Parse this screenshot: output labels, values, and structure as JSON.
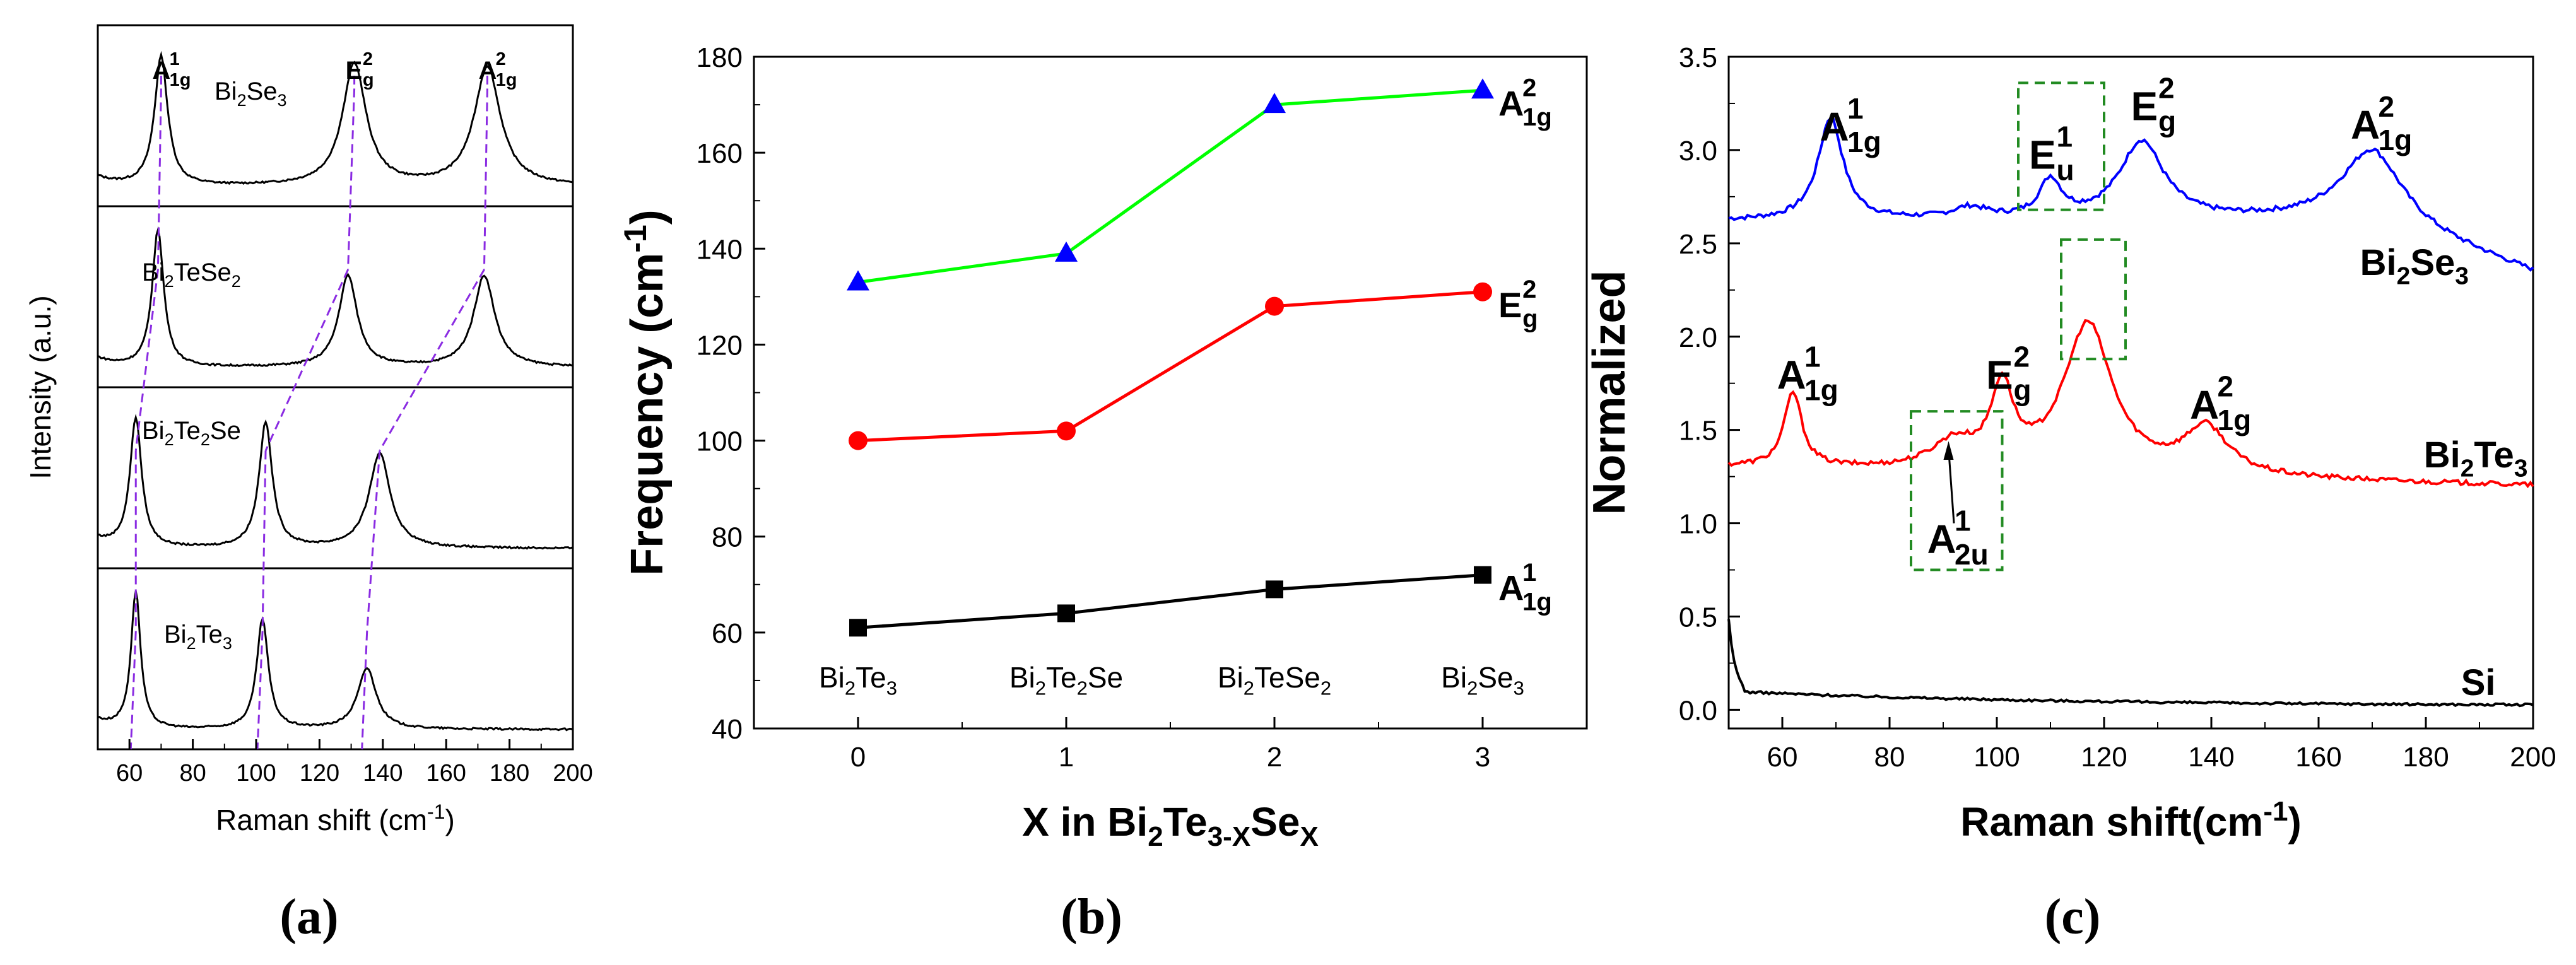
{
  "panels": {
    "a": {
      "label": "(a)",
      "ylabel": "Intensity (a.u.)",
      "xlabel": "Raman shift (cm",
      "xlabel_sup": "-1",
      "xlabel_end": ")",
      "xlim": [
        50,
        200
      ],
      "xticks": [
        "60",
        "80",
        "100",
        "120",
        "140",
        "160",
        "180",
        "200"
      ],
      "subplots": [
        {
          "name": "Bi2Se3",
          "base": "Bi",
          "sub1": "2",
          "mid": "Se",
          "sub2": "3",
          "tail": ""
        },
        {
          "name": "Bi2TeSe2",
          "base": "Bi",
          "sub1": "2",
          "mid": "TeSe",
          "sub2": "2",
          "tail": ""
        },
        {
          "name": "Bi2Te2Se",
          "base": "Bi",
          "sub1": "2",
          "mid": "Te",
          "sub2": "2",
          "tail": "Se"
        },
        {
          "name": "Bi2Te3",
          "base": "Bi",
          "sub1": "2",
          "mid": "Te",
          "sub2": "3",
          "tail": ""
        }
      ],
      "mode_labels": [
        {
          "main": "A",
          "sup": "1",
          "sub": "1g",
          "x": 70
        },
        {
          "main": "E",
          "sup": "2",
          "sub": "g",
          "x": 131
        },
        {
          "main": "A",
          "sup": "2",
          "sub": "1g",
          "x": 173
        }
      ],
      "peak_positions": [
        [
          70,
          131,
          173
        ],
        [
          69,
          129,
          172
        ],
        [
          62,
          103,
          139
        ],
        [
          62,
          102,
          135
        ]
      ]
    },
    "b": {
      "label": "(b)",
      "ylabel": "Frequency (cm",
      "ylabel_sup": "-1",
      "ylabel_end": ")",
      "xlabel_parts": [
        "X in Bi",
        "2",
        "Te",
        "3-X",
        "Se",
        "X"
      ],
      "ylim": [
        40,
        180
      ],
      "xlim": [
        -0.5,
        3.5
      ],
      "yticks": [
        "40",
        "60",
        "80",
        "100",
        "120",
        "140",
        "160",
        "180"
      ],
      "xticks": [
        "0",
        "1",
        "2",
        "3"
      ],
      "compound_labels": [
        {
          "base": "Bi",
          "sub1": "2",
          "mid": "Te",
          "sub2": "3",
          "tail": "",
          "sub3": ""
        },
        {
          "base": "Bi",
          "sub1": "2",
          "mid": "Te",
          "sub2": "2",
          "tail": "Se",
          "sub3": ""
        },
        {
          "base": "Bi",
          "sub1": "2",
          "mid": "TeSe",
          "sub2": "2",
          "tail": "",
          "sub3": ""
        },
        {
          "base": "Bi",
          "sub1": "2",
          "mid": "Se",
          "sub2": "3",
          "tail": "",
          "sub3": ""
        }
      ]
    },
    "c": {
      "label": "(c)",
      "ylabel": "Normalized",
      "xlabel": "Raman shift(cm",
      "xlabel_sup": "-1",
      "xlabel_end": ")",
      "xlim": [
        50,
        200
      ],
      "ylim": [
        -0.1,
        3.5
      ],
      "xticks": [
        "60",
        "80",
        "100",
        "120",
        "140",
        "160",
        "180",
        "200"
      ],
      "yticks": [
        "0.0",
        "0.5",
        "1.0",
        "1.5",
        "2.0",
        "2.5",
        "3.0",
        "3.5"
      ],
      "series_labels": [
        {
          "base": "Bi",
          "sub1": "2",
          "mid": "Se",
          "sub2": "3"
        },
        {
          "base": "Bi",
          "sub1": "2",
          "mid": "Te",
          "sub2": "3"
        },
        {
          "base": "Si",
          "sub1": "",
          "mid": "",
          "sub2": ""
        }
      ],
      "mode_labels_bi2se3": [
        {
          "main": "A",
          "sup": "1",
          "sub": "1g"
        },
        {
          "main": "E",
          "sup": "1",
          "sub": "u"
        },
        {
          "main": "E",
          "sup": "2",
          "sub": "g"
        },
        {
          "main": "A",
          "sup": "2",
          "sub": "1g"
        }
      ],
      "mode_labels_bi2te3": [
        {
          "main": "A",
          "sup": "1",
          "sub": "1g"
        },
        {
          "main": "E",
          "sup": "2",
          "sub": "g"
        },
        {
          "main": "A",
          "sup": "2",
          "sub": "1g"
        },
        {
          "main": "A",
          "sup": "1",
          "sub": "2u"
        }
      ]
    }
  },
  "chart_data": [
    {
      "type": "line",
      "title": "",
      "xlabel": "Raman shift (cm-1)",
      "ylabel": "Intensity (a.u.)",
      "xlim": [
        50,
        200
      ],
      "series": [
        {
          "name": "Bi2Se3",
          "color": "#000000",
          "peaks": [
            [
              70,
              0.85,
              2.5
            ],
            [
              131,
              0.8,
              4.5
            ],
            [
              173,
              0.78,
              5
            ]
          ]
        },
        {
          "name": "Bi2TeSe2",
          "color": "#000000",
          "peaks": [
            [
              69,
              0.9,
              2.2
            ],
            [
              129,
              0.6,
              3.5
            ],
            [
              172,
              0.6,
              4
            ]
          ]
        },
        {
          "name": "Bi2Te2Se",
          "color": "#000000",
          "peaks": [
            [
              62,
              0.85,
              2.2
            ],
            [
              103,
              0.82,
              2.5
            ],
            [
              139,
              0.62,
              4
            ]
          ]
        },
        {
          "name": "Bi2Te3",
          "color": "#000000",
          "peaks": [
            [
              62,
              0.9,
              1.8
            ],
            [
              102,
              0.72,
              2.2
            ],
            [
              135,
              0.4,
              3.5
            ]
          ]
        }
      ]
    },
    {
      "type": "line",
      "title": "",
      "xlabel": "X in Bi2Te3-XSeX",
      "ylabel": "Frequency (cm-1)",
      "ylim": [
        40,
        180
      ],
      "x": [
        0,
        1,
        2,
        3
      ],
      "series": [
        {
          "name": "A1g^2",
          "label_main": "A",
          "label_sup": "2",
          "label_sub": "1g",
          "color": "#00ff00",
          "marker": "triangle",
          "marker_color": "#0000ff",
          "values": [
            133,
            139,
            170,
            173
          ]
        },
        {
          "name": "Eg^2",
          "label_main": "E",
          "label_sup": "2",
          "label_sub": "g",
          "color": "#ff0000",
          "marker": "circle",
          "marker_color": "#ff0000",
          "values": [
            100,
            102,
            128,
            131
          ]
        },
        {
          "name": "A1g^1",
          "label_main": "A",
          "label_sup": "1",
          "label_sub": "1g",
          "color": "#000000",
          "marker": "square",
          "marker_color": "#000000",
          "values": [
            61,
            64,
            69,
            72
          ]
        }
      ]
    },
    {
      "type": "line",
      "title": "",
      "xlabel": "Raman shift(cm-1)",
      "ylabel": "Normalized",
      "xlim": [
        50,
        200
      ],
      "ylim": [
        -0.1,
        3.5
      ],
      "series": [
        {
          "name": "Bi2Se3",
          "color": "#0000ff",
          "baseline": 2.62,
          "peaks": [
            [
              69,
              0.55,
              2.8
            ],
            [
              95,
              0.06,
              4
            ],
            [
              110,
              0.2,
              2.5
            ],
            [
              127,
              0.42,
              5
            ],
            [
              170,
              0.38,
              7
            ]
          ]
        },
        {
          "name": "Bi2Te3",
          "color": "#ff0000",
          "baseline": 1.3,
          "peaks": [
            [
              62,
              0.4,
              2
            ],
            [
              92,
              0.14,
              5
            ],
            [
              101,
              0.42,
              2.5
            ],
            [
              117,
              0.8,
              5.5
            ],
            [
              139,
              0.25,
              5
            ]
          ]
        },
        {
          "name": "Si",
          "color": "#000000",
          "baseline": 0.02,
          "peaks": [
            [
              50,
              0.38,
              1.5
            ]
          ]
        }
      ]
    }
  ]
}
